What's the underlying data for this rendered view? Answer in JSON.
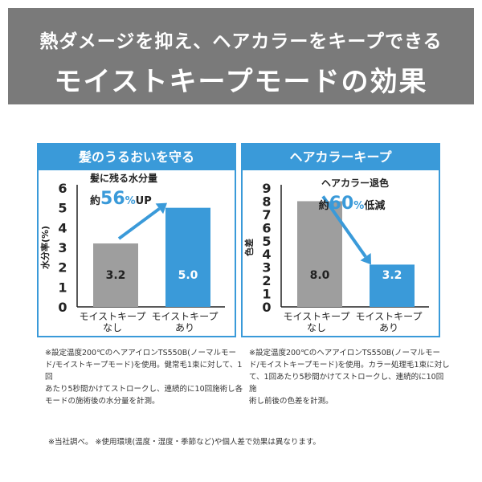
{
  "banner": {
    "line1": "熱ダメージを抑え、ヘアカラーをキープできる",
    "line2": "モイストキープモードの効果"
  },
  "chart_data": [
    {
      "type": "bar",
      "title": "髪のうるおいを守る",
      "ylabel": "水分率(%)",
      "ylim": [
        0,
        6
      ],
      "yticks": [
        0,
        1,
        2,
        3,
        4,
        5,
        6
      ],
      "categories": [
        [
          "モイストキープ",
          "なし"
        ],
        [
          "モイストキープ",
          "あり"
        ]
      ],
      "values": [
        3.2,
        5.0
      ],
      "value_labels": [
        "3.2",
        "5.0"
      ],
      "colors": [
        "#9e9e9e",
        "#3a9ad9"
      ],
      "annotation": {
        "line1": "髪に残る水分量",
        "prefix": "約",
        "number": "56",
        "unit": "%",
        "suffix": "UP"
      }
    },
    {
      "type": "bar",
      "title": "ヘアカラーキープ",
      "ylabel": "色差",
      "ylim": [
        0,
        9
      ],
      "yticks": [
        0,
        1,
        2,
        3,
        4,
        5,
        6,
        7,
        8,
        9
      ],
      "categories": [
        [
          "モイストキープ",
          "なし"
        ],
        [
          "モイストキープ",
          "あり"
        ]
      ],
      "values": [
        8.0,
        3.2
      ],
      "value_labels": [
        "8.0",
        "3.2"
      ],
      "colors": [
        "#9e9e9e",
        "#3a9ad9"
      ],
      "annotation": {
        "line1": "ヘアカラー退色",
        "prefix": "約",
        "number": "60",
        "unit": "%",
        "suffix": "低減"
      }
    }
  ],
  "notes": [
    [
      "※設定温度200℃のヘアアイロンTS550B(ノーマルモー",
      "ド/モイストキープモード)を使用。健常毛1束に対して、1回",
      "あたり5秒間かけてストロークし、連続的に10回施術し各",
      "モードの施術後の水分量を計測。"
    ],
    [
      "※設定温度200℃のヘアアイロンTS550B(ノーマルモー",
      "ド/モイストキープモード)を使用。カラー処理毛1束に対し",
      "て、1回あたり5秒間かけてストロークし、連続的に10回施",
      "術し前後の色差を計測。"
    ]
  ],
  "footer": "※当社調べ。 ※使用環境(温度・湿度・季節など)や個人差で効果は異なります。"
}
